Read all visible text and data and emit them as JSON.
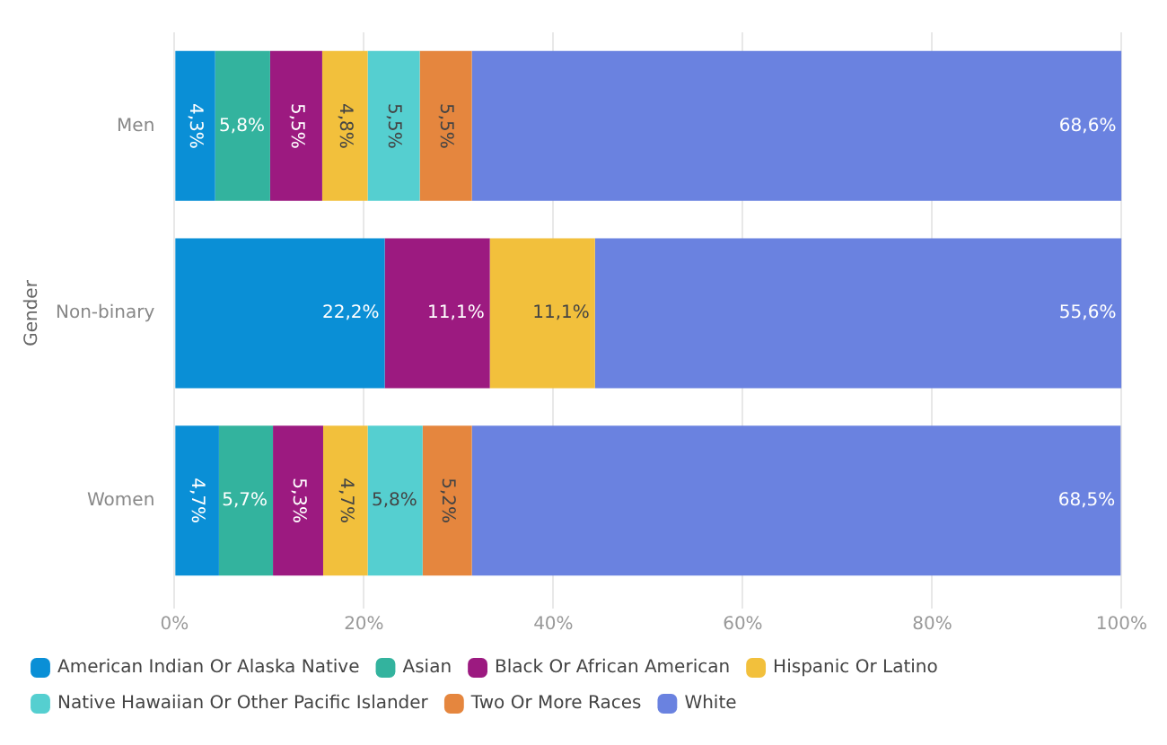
{
  "chart_data": {
    "type": "bar",
    "orientation": "horizontal",
    "stacked": true,
    "ylabel": "Gender",
    "categories": [
      "Men",
      "Non-binary",
      "Women"
    ],
    "series": [
      {
        "name": "American Indian Or Alaska Native",
        "color": "#0a8fd6",
        "values": [
          4.3,
          22.2,
          4.7
        ],
        "value_labels": [
          "4,3%",
          "22,2%",
          "4,7%"
        ]
      },
      {
        "name": "Asian",
        "color": "#33b39e",
        "values": [
          5.8,
          0,
          5.7
        ],
        "value_labels": [
          "5,8%",
          null,
          "5,7%"
        ]
      },
      {
        "name": "Black Or African American",
        "color": "#9c1a80",
        "values": [
          5.5,
          11.1,
          5.3
        ],
        "value_labels": [
          "5,5%",
          "11,1%",
          "5,3%"
        ]
      },
      {
        "name": "Hispanic Or Latino",
        "color": "#f2c03c",
        "values": [
          4.8,
          11.1,
          4.7
        ],
        "value_labels": [
          "4,8%",
          "11,1%",
          "4,7%"
        ]
      },
      {
        "name": "Native Hawaiian Or Other Pacific Islander",
        "color": "#55cfd0",
        "values": [
          5.5,
          0,
          5.8
        ],
        "value_labels": [
          "5,5%",
          null,
          "5,8%"
        ]
      },
      {
        "name": "Two Or More Races",
        "color": "#e5863e",
        "values": [
          5.5,
          0,
          5.2
        ],
        "value_labels": [
          "5,5%",
          null,
          "5,2%"
        ]
      },
      {
        "name": "White",
        "color": "#6a82e0",
        "values": [
          68.6,
          55.6,
          68.5
        ],
        "value_labels": [
          "68,6%",
          "55,6%",
          "68,5%"
        ]
      }
    ],
    "xlim": [
      0,
      100
    ],
    "xticks": [
      {
        "value": 0,
        "label": "0%"
      },
      {
        "value": 20,
        "label": "20%"
      },
      {
        "value": 40,
        "label": "40%"
      },
      {
        "value": 60,
        "label": "60%"
      },
      {
        "value": 80,
        "label": "80%"
      },
      {
        "value": 100,
        "label": "100%"
      }
    ],
    "grid": "x",
    "legend": "bottom"
  }
}
